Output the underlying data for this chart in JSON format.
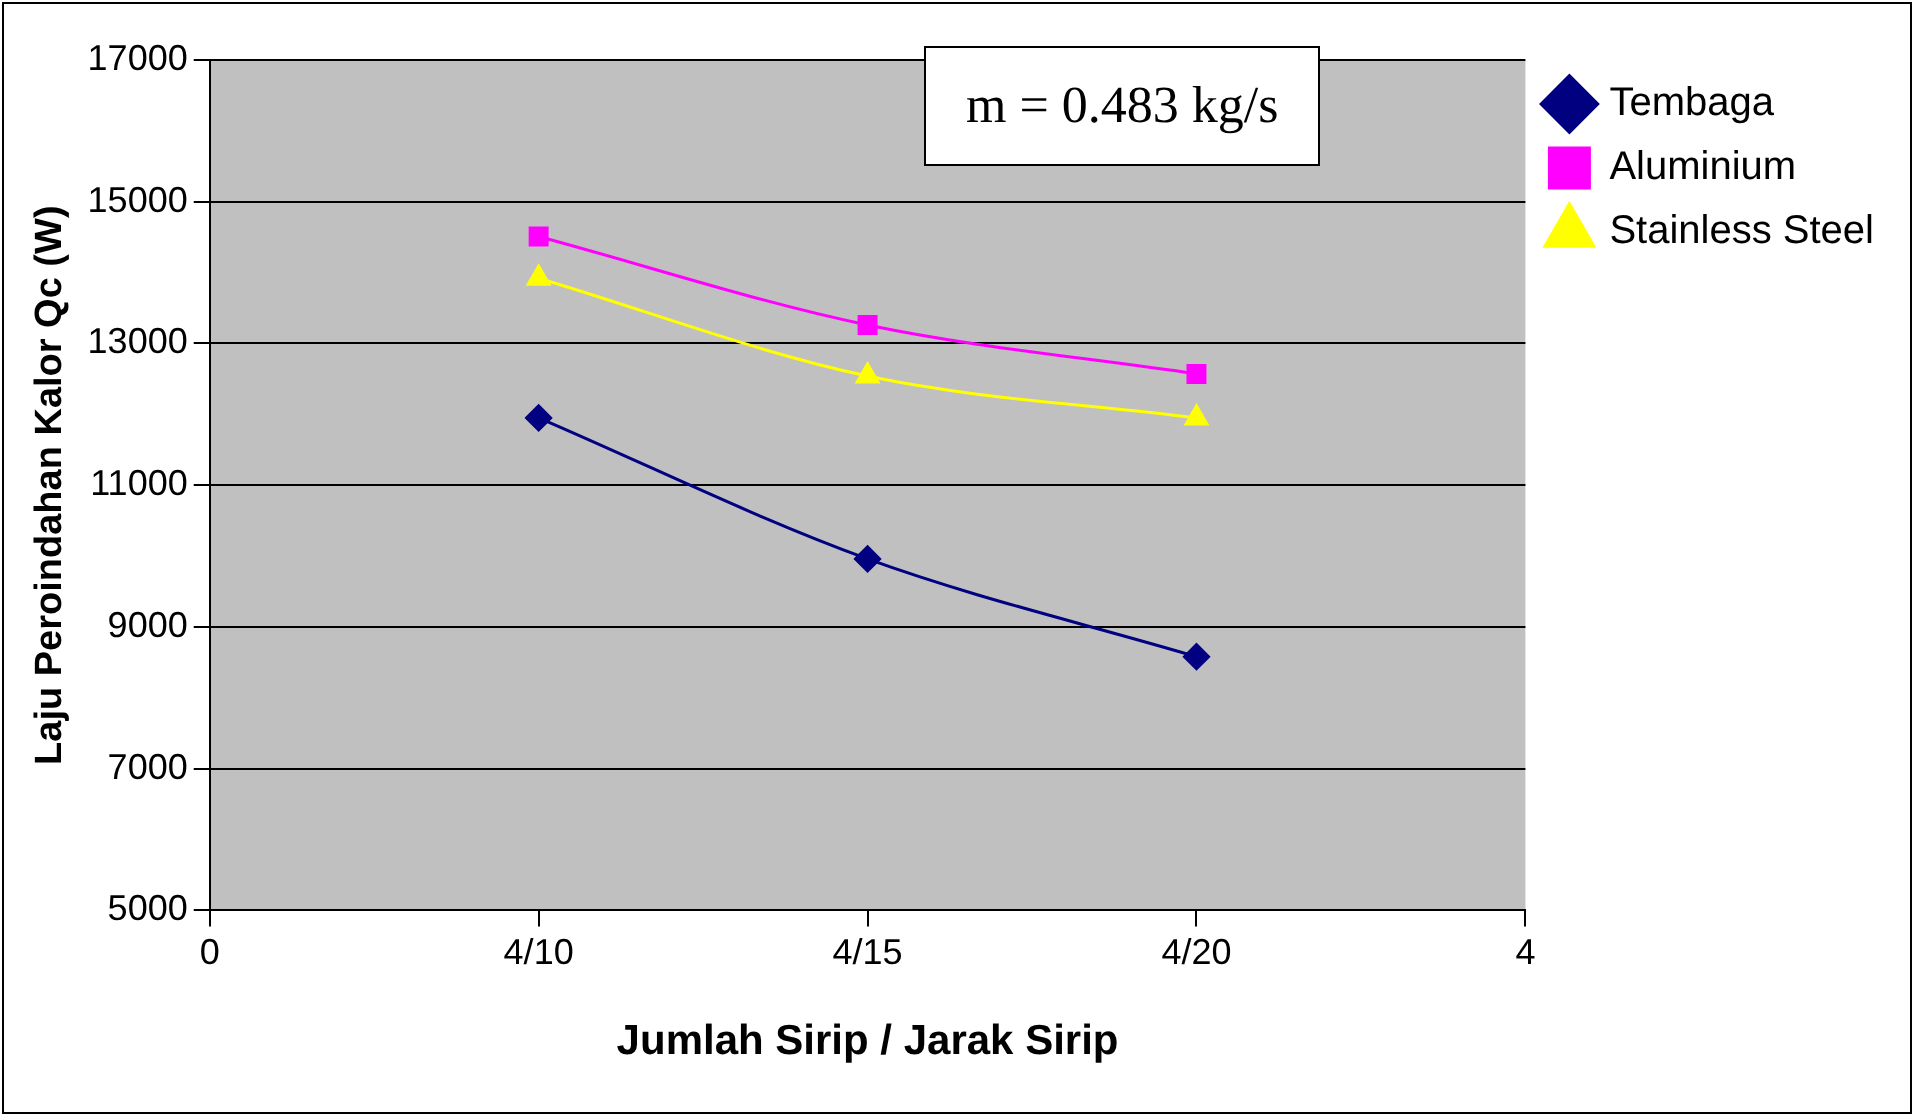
{
  "chart_data": {
    "type": "line",
    "xlabel": "Jumlah Sirip / Jarak Sirip",
    "ylabel": "Laju Peroindahan Kalor Qc (W)",
    "annotations": [
      "m = 0.483 kg/s"
    ],
    "categories": [
      "0",
      "4/10",
      "4/15",
      "4/20",
      "4"
    ],
    "ylim": [
      5000,
      17000
    ],
    "yticks": [
      5000,
      7000,
      9000,
      11000,
      13000,
      15000,
      17000
    ],
    "grid": "y",
    "legend": "top right",
    "series": [
      {
        "name": "Tembaga",
        "color": "#000080",
        "marker": "diamond",
        "values": [
          null,
          11950,
          9960,
          8580,
          null
        ]
      },
      {
        "name": "Aluminium",
        "color": "#ff00ff",
        "marker": "square",
        "values": [
          null,
          14510,
          13260,
          12570,
          null
        ]
      },
      {
        "name": "Stainless Steel",
        "color": "#ffff00",
        "marker": "triangle",
        "values": [
          null,
          13920,
          12540,
          11950,
          null
        ]
      }
    ]
  }
}
